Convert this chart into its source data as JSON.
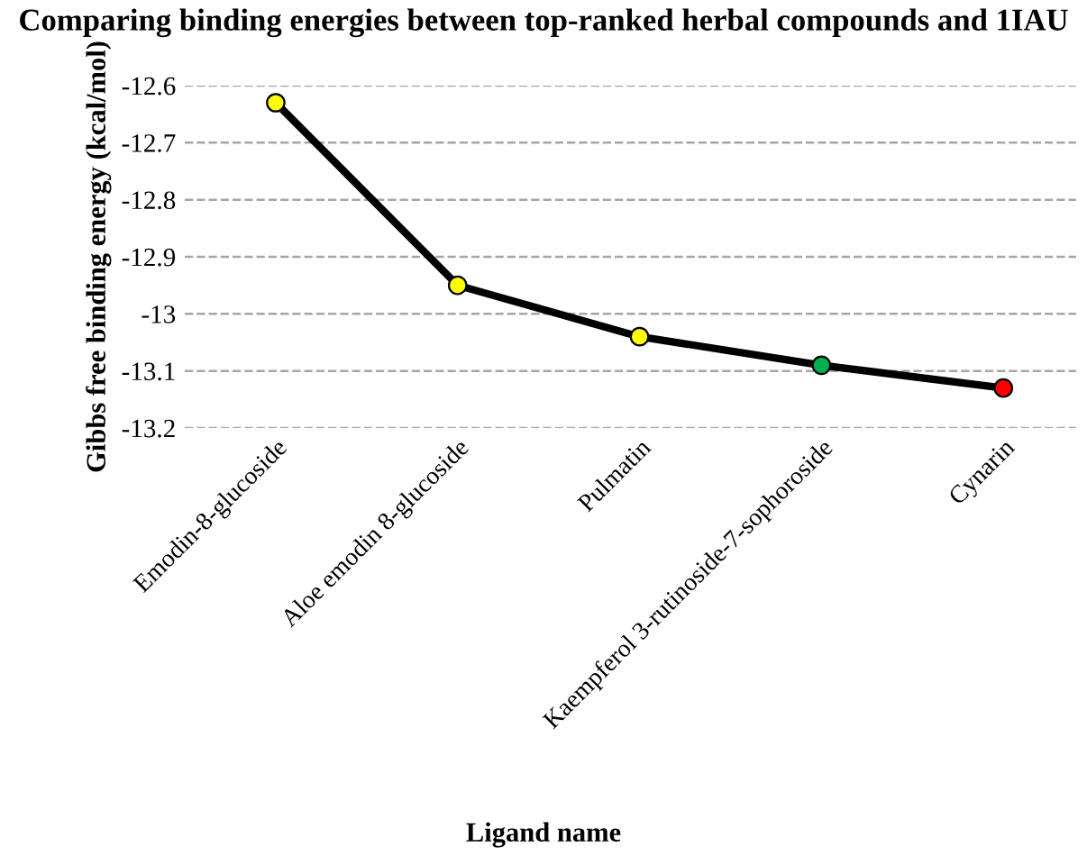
{
  "chart_data": {
    "type": "line",
    "title": "Comparing binding energies between top-ranked herbal compounds and 1IAU",
    "xlabel": "Ligand name",
    "ylabel": "Gibbs free binding energy (kcal/mol)",
    "categories": [
      "Emodin-8-glucoside",
      "Aloe emodin 8-glucoside",
      "Pulmatin",
      "Kaempferol 3-rutinoside-7-sophoroside",
      "Cynarin"
    ],
    "series": [
      {
        "color": "#000000",
        "colors": [
          "#ffff00",
          "#ffff00",
          "#ffff00",
          "#00b050",
          "#ff0000"
        ],
        "values": [
          -12.63,
          -12.95,
          -13.04,
          -13.09,
          -13.13
        ]
      }
    ],
    "ylim": [
      -13.2,
      -12.6
    ],
    "yticks": [
      -12.6,
      -12.7,
      -12.8,
      -12.9,
      {
        "value": -13.0,
        "label": "-13"
      },
      -13.1,
      -13.2
    ],
    "grid": "y",
    "marker": "circle",
    "line_style": "solid",
    "legend": false
  }
}
